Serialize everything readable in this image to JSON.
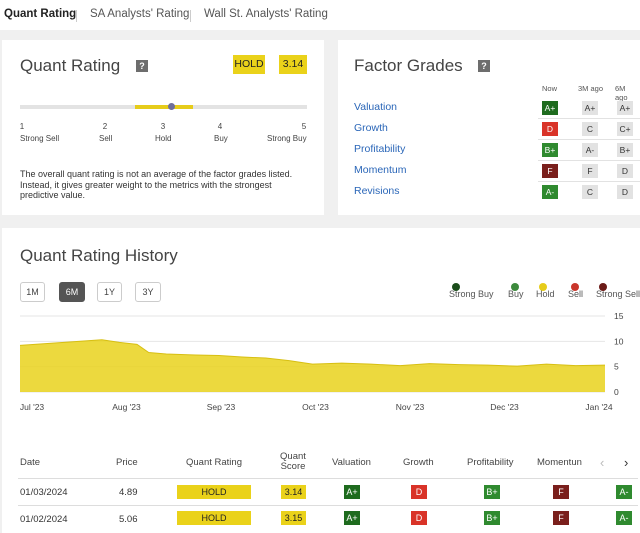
{
  "tabs": [
    "Quant Rating",
    "SA Analysts' Rating",
    "Wall St. Analysts' Rating"
  ],
  "quant": {
    "title": "Quant Rating",
    "help": "?",
    "rating": "HOLD",
    "score": "3.14",
    "scale": [
      {
        "num": "1",
        "label": "Strong Sell"
      },
      {
        "num": "2",
        "label": "Sell"
      },
      {
        "num": "3",
        "label": "Hold"
      },
      {
        "num": "4",
        "label": "Buy"
      },
      {
        "num": "5",
        "label": "Strong Buy"
      }
    ],
    "description": "The overall quant rating is not an average of the factor grades listed. Instead, it gives greater weight to the metrics with the strongest predictive value."
  },
  "factors": {
    "title": "Factor Grades",
    "help": "?",
    "columns": [
      "Now",
      "3M ago",
      "6M ago"
    ],
    "rows": [
      {
        "name": "Valuation",
        "now": "A+",
        "m3": "A+",
        "m6": "A+"
      },
      {
        "name": "Growth",
        "now": "D",
        "m3": "C",
        "m6": "C+"
      },
      {
        "name": "Profitability",
        "now": "B+",
        "m3": "A-",
        "m6": "B+"
      },
      {
        "name": "Momentum",
        "now": "F",
        "m3": "F",
        "m6": "D"
      },
      {
        "name": "Revisions",
        "now": "A-",
        "m3": "C",
        "m6": "D"
      }
    ]
  },
  "history": {
    "title": "Quant Rating History",
    "ranges": [
      "1M",
      "6M",
      "1Y",
      "3Y"
    ],
    "active_range": "6M",
    "legend": [
      {
        "label": "Strong Buy",
        "color": "#1b4d1b"
      },
      {
        "label": "Buy",
        "color": "#3d8a3d"
      },
      {
        "label": "Hold",
        "color": "#e6cc1a"
      },
      {
        "label": "Sell",
        "color": "#c9362b"
      },
      {
        "label": "Strong Sell",
        "color": "#6b1a17"
      }
    ]
  },
  "chart_data": {
    "type": "area",
    "x_labels": [
      "Jul '23",
      "Aug '23",
      "Sep '23",
      "Oct '23",
      "Nov '23",
      "Dec '23",
      "Jan '24"
    ],
    "y_ticks": [
      0,
      5,
      10,
      15
    ],
    "ylim": [
      0,
      15
    ],
    "fill_color": "#e9d21c",
    "x": [
      0,
      0.05,
      0.1,
      0.14,
      0.17,
      0.2,
      0.22,
      0.25,
      0.3,
      0.34,
      0.38,
      0.42,
      0.46,
      0.5,
      0.55,
      0.6,
      0.65,
      0.7,
      0.75,
      0.8,
      0.85,
      0.9,
      0.95,
      1.0
    ],
    "values": [
      9.2,
      9.6,
      10.0,
      10.3,
      9.8,
      9.4,
      7.8,
      7.5,
      7.3,
      7.2,
      6.9,
      6.7,
      6.2,
      5.5,
      5.7,
      5.5,
      5.2,
      5.6,
      5.4,
      5.3,
      5.1,
      5.5,
      5.2,
      5.3
    ]
  },
  "table": {
    "headers": [
      "Date",
      "Price",
      "Quant Rating",
      "Quant Score",
      "Valuation",
      "Growth",
      "Profitability",
      "Momentun"
    ],
    "rows": [
      {
        "date": "01/03/2024",
        "price": "4.89",
        "rating": "HOLD",
        "score": "3.14",
        "valuation": "A+",
        "growth": "D",
        "profitability": "B+",
        "momentum": "F",
        "extra": "A-"
      },
      {
        "date": "01/02/2024",
        "price": "5.06",
        "rating": "HOLD",
        "score": "3.15",
        "valuation": "A+",
        "growth": "D",
        "profitability": "B+",
        "momentum": "F",
        "extra": "A-"
      }
    ],
    "prev": "‹",
    "next": "›"
  }
}
